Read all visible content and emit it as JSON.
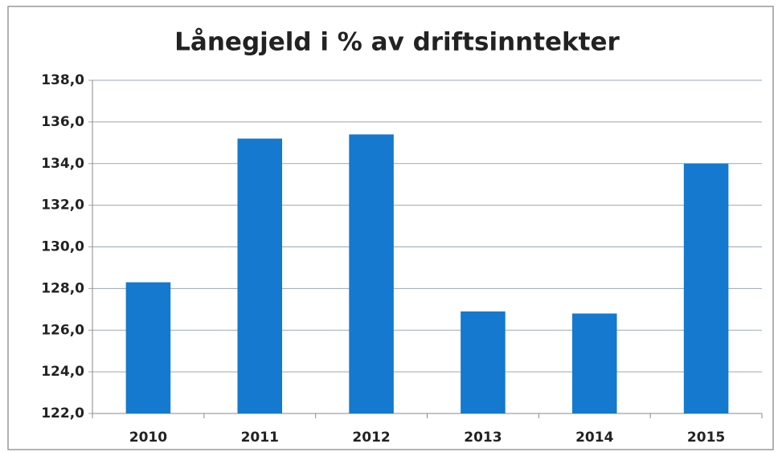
{
  "chart_data": {
    "type": "bar",
    "title": "Lånegjeld i % av driftsinntekter",
    "categories": [
      "2010",
      "2011",
      "2012",
      "2013",
      "2014",
      "2015"
    ],
    "values": [
      128.3,
      135.2,
      135.4,
      126.9,
      126.8,
      134.0
    ],
    "color": "#1479cf",
    "ylim": [
      122,
      138
    ],
    "yticks": [
      {
        "value": 122,
        "label": "122,0"
      },
      {
        "value": 124,
        "label": "124,0"
      },
      {
        "value": 126,
        "label": "126,0"
      },
      {
        "value": 128,
        "label": "128,0"
      },
      {
        "value": 130,
        "label": "130,0"
      },
      {
        "value": 132,
        "label": "132,0"
      },
      {
        "value": 134,
        "label": "134,0"
      },
      {
        "value": 136,
        "label": "136,0"
      },
      {
        "value": 138,
        "label": "138,0"
      }
    ],
    "grid": true
  }
}
